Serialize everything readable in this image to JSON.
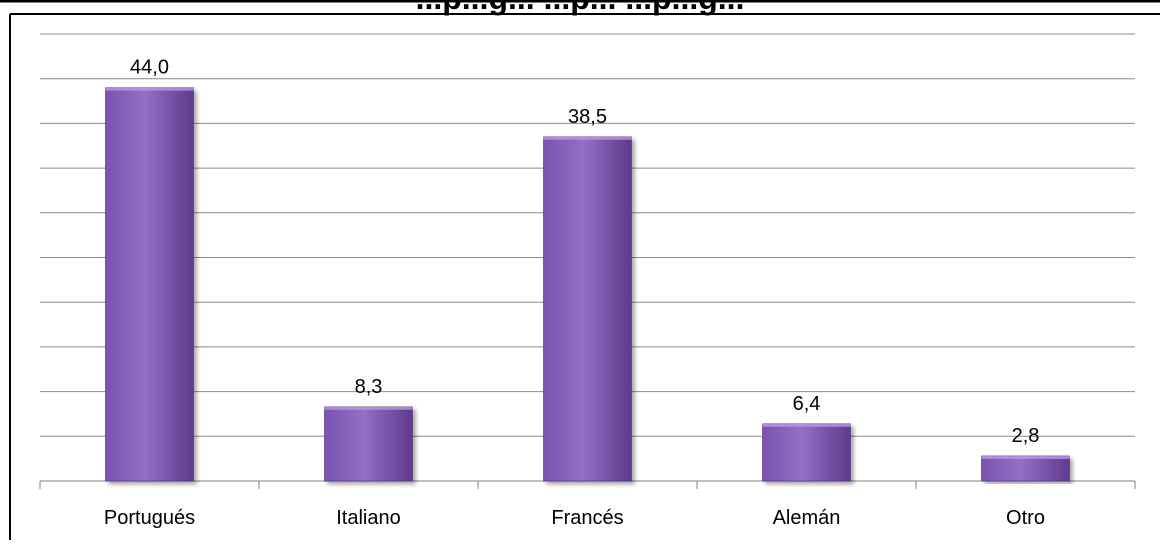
{
  "chart_data": {
    "type": "bar",
    "title": "",
    "title_partial_visible": "...p...g... ...p... ...p...g...",
    "categories": [
      "Portugués",
      "Italiano",
      "Francés",
      "Alemán",
      "Otro"
    ],
    "values": [
      44.0,
      8.3,
      38.5,
      6.4,
      2.8
    ],
    "data_labels": [
      "44,0",
      "8,3",
      "38,5",
      "6,4",
      "2,8"
    ],
    "xlabel": "",
    "ylabel": "",
    "ylim": [
      0,
      50
    ],
    "grid": true,
    "legend": "none",
    "colors": {
      "bar_top": "#9270c4",
      "bar_mid": "#7a53b0",
      "bar_bottom": "#5e3a8c",
      "grid": "#8c8c8c",
      "axis": "#808080",
      "text": "#000000"
    }
  }
}
